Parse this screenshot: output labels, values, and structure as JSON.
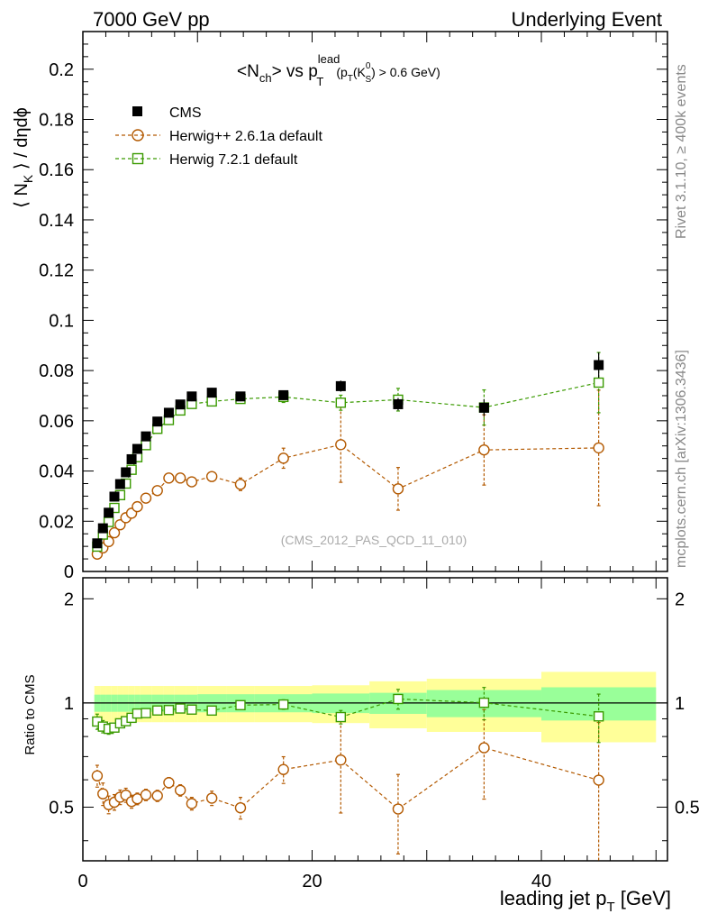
{
  "header": {
    "left": "7000 GeV pp",
    "right": "Underlying Event"
  },
  "side_text": {
    "rivet": "Rivet 3.1.10, ≥ 400k events",
    "mcplots": "mcplots.cern.ch [arXiv:1306.3436]"
  },
  "plot_title": {
    "main": "<N",
    "sub": "ch",
    "mid": "> vs p",
    "sup": "lead",
    "sub2": "T",
    "cut": "(p",
    "cut_sub": "T",
    "cut_mid": "(K",
    "cut_sup": "0",
    "cut_sub2": "S",
    "cut_end": ") > 0.6 GeV)"
  },
  "ylabel_main": {
    "pre": "⟨ N",
    "sub": "K",
    "post": " ⟩ / dηdϕ"
  },
  "ylabel_ratio": "Ratio to CMS",
  "xlabel": {
    "main": "leading jet p",
    "sub": "T",
    "unit": " [GeV]"
  },
  "watermark": "(CMS_2012_PAS_QCD_11_010)",
  "colors": {
    "cms": "#000000",
    "herwigpp": "#b35900",
    "herwig7": "#3a9a00",
    "band_inner": "#99ff99",
    "band_outer": "#ffff99"
  },
  "chart_data": {
    "type": "scatter",
    "x": [
      1.25,
      1.75,
      2.25,
      2.75,
      3.25,
      3.75,
      4.25,
      4.75,
      5.5,
      6.5,
      7.5,
      8.5,
      9.5,
      11.25,
      13.75,
      17.5,
      22.5,
      27.5,
      35.0,
      45.0
    ],
    "x_edges": [
      1.0,
      1.5,
      2.0,
      2.5,
      3.0,
      3.5,
      4.0,
      4.5,
      5.0,
      6.0,
      7.0,
      8.0,
      9.0,
      10.0,
      12.5,
      15.0,
      20.0,
      25.0,
      30.0,
      40.0,
      50.0
    ],
    "xlim": [
      0,
      51
    ],
    "x_ticks": [
      0,
      20,
      40
    ],
    "main_ylim": [
      0,
      0.215
    ],
    "main_y_ticks": [
      0,
      0.02,
      0.04,
      0.06,
      0.08,
      0.1,
      0.12,
      0.14,
      0.16,
      0.18,
      0.2
    ],
    "main_y_tick_labels": [
      "0",
      "0.02",
      "0.04",
      "0.06",
      "0.08",
      "0.1",
      "0.12",
      "0.14",
      "0.16",
      "0.18",
      "0.2"
    ],
    "ratio_ylim": [
      0.35,
      2.3
    ],
    "ratio_y_ticks": [
      0.5,
      1,
      2
    ],
    "ratio_y_tick_labels": [
      "0.5",
      "1",
      "2"
    ],
    "series": [
      {
        "name": "CMS",
        "marker": "filled-square",
        "values": [
          0.0112,
          0.0172,
          0.0234,
          0.0298,
          0.0348,
          0.0395,
          0.0447,
          0.0488,
          0.0538,
          0.0597,
          0.0632,
          0.0665,
          0.0697,
          0.0712,
          0.0697,
          0.0702,
          0.0738,
          0.0666,
          0.0652,
          0.0822
        ],
        "errors": [
          0.0009,
          0.001,
          0.001,
          0.0011,
          0.0012,
          0.0013,
          0.0014,
          0.0015,
          0.0016,
          0.0017,
          0.0018,
          0.0018,
          0.0019,
          0.0019,
          0.0019,
          0.0019,
          0.0022,
          0.0025,
          0.0033,
          0.005
        ],
        "band_inner": [
          0.057,
          0.057,
          0.057,
          0.057,
          0.057,
          0.057,
          0.057,
          0.057,
          0.057,
          0.057,
          0.057,
          0.057,
          0.057,
          0.06,
          0.06,
          0.06,
          0.065,
          0.07,
          0.09,
          0.11,
          0.165
        ],
        "band_outer": [
          0.12,
          0.12,
          0.12,
          0.12,
          0.12,
          0.12,
          0.12,
          0.12,
          0.12,
          0.12,
          0.12,
          0.12,
          0.12,
          0.12,
          0.12,
          0.12,
          0.125,
          0.155,
          0.175,
          0.23,
          0.28
        ]
      },
      {
        "name": "Herwig++ 2.6.1a default",
        "marker": "open-circle",
        "values": [
          0.0069,
          0.0094,
          0.0119,
          0.0154,
          0.0186,
          0.0214,
          0.0232,
          0.0258,
          0.0292,
          0.0322,
          0.0372,
          0.0372,
          0.0357,
          0.0378,
          0.0347,
          0.0451,
          0.0505,
          0.0329,
          0.0484,
          0.0492
        ],
        "errors": [
          0.0005,
          0.0007,
          0.0007,
          0.0008,
          0.0009,
          0.001,
          0.001,
          0.001,
          0.0011,
          0.0012,
          0.0013,
          0.0014,
          0.0015,
          0.0018,
          0.0025,
          0.004,
          0.015,
          0.0085,
          0.014,
          0.023
        ]
      },
      {
        "name": "Herwig 7.2.1 default",
        "marker": "open-square",
        "values": [
          0.0099,
          0.0147,
          0.0197,
          0.0253,
          0.0304,
          0.035,
          0.0405,
          0.0455,
          0.0503,
          0.0568,
          0.0603,
          0.0641,
          0.0667,
          0.0677,
          0.0687,
          0.0695,
          0.0672,
          0.0684,
          0.0653,
          0.0752
        ],
        "errors": [
          0.0005,
          0.0006,
          0.0007,
          0.0007,
          0.0008,
          0.0008,
          0.0009,
          0.0009,
          0.001,
          0.0011,
          0.0012,
          0.0012,
          0.0013,
          0.0014,
          0.0017,
          0.0022,
          0.003,
          0.0045,
          0.007,
          0.012
        ]
      }
    ],
    "legend": [
      "CMS",
      "Herwig++ 2.6.1a default",
      "Herwig 7.2.1 default"
    ],
    "legend_position": "top-left",
    "grid": false
  }
}
